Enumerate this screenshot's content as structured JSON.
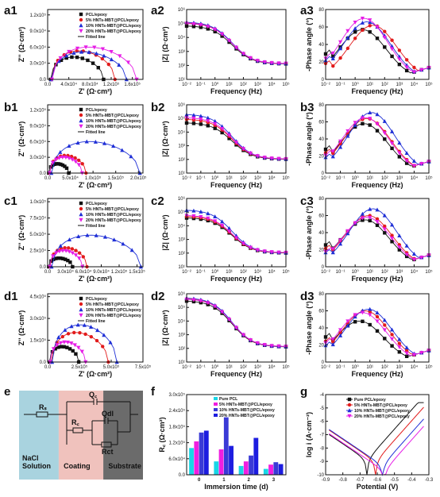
{
  "panels": {
    "a1": "a1",
    "a2": "a2",
    "a3": "a3",
    "b1": "b1",
    "b2": "b2",
    "b3": "b3",
    "c1": "c1",
    "c2": "c2",
    "c3": "c3",
    "d1": "d1",
    "d2": "d2",
    "d3": "d3",
    "e": "e",
    "f": "f",
    "g": "g"
  },
  "colors": {
    "s0": "#111111",
    "s1": "#e21b1b",
    "s2": "#1f2fd6",
    "s3": "#e61ce6",
    "fit": "#111111",
    "f0": "#18d6e6",
    "f1": "#f01ee0",
    "f2": "#3a3ad6",
    "f3": "#1d1de0"
  },
  "legend_nyquist": [
    "PCL/epoxy",
    "5% HNTs-MBT@PCL/epoxy",
    "10% HNTs-MBT@PCL/epoxy",
    "20% HNTs-MBT@PCL/epoxy",
    "Fitted line"
  ],
  "legend_short": [
    "PCL/epoxy",
    "5% HNTs-MBT@PCL/epoxy",
    "10% HNTs-MBT@PCL/epoxy",
    "20% HNTs-MBT@PCL/epoxy"
  ],
  "chart_data": [
    {
      "id": "a1",
      "type": "scatter",
      "xlabel": "Z' (Ω·cm²)",
      "ylabel": "Z'' (Ω·cm²)",
      "xlim": [
        0,
        180000.0
      ],
      "ylim": [
        0,
        130000.0
      ],
      "xticks": [
        "0.0",
        "4.0x10⁴",
        "8.0x10⁴",
        "1.2x10⁵",
        "1.6x10⁵"
      ],
      "xtick_values": [
        0,
        40000,
        80000,
        120000,
        160000
      ],
      "yticks": [
        "0.0",
        "3.0x10⁴",
        "6.0x10⁴",
        "9.0x10⁴",
        "1.2x10⁵"
      ],
      "ytick_values": [
        0,
        30000,
        60000,
        90000,
        120000
      ],
      "series": [
        {
          "name": "PCL/epoxy",
          "r": 47000,
          "end": 100000
        },
        {
          "name": "5% HNTs-MBT@PCL/epoxy",
          "r": 60000,
          "end": 120000
        },
        {
          "name": "10% HNTs-MBT@PCL/epoxy",
          "r": 58000,
          "end": 142000
        },
        {
          "name": "20% HNTs-MBT@PCL/epoxy",
          "r": 68000,
          "end": 160000
        }
      ]
    },
    {
      "id": "b1",
      "type": "scatter",
      "xlabel": "Z' (Ω·cm²)",
      "ylabel": "Z'' (Ω·cm²)",
      "xlim": [
        0,
        210000.0
      ],
      "ylim": [
        0,
        130000.0
      ],
      "xticks": [
        "0.0",
        "5.0x10⁴",
        "1.0x10⁵",
        "1.5x10⁵",
        "2.0x10⁵"
      ],
      "xtick_values": [
        0,
        50000,
        100000,
        150000,
        200000
      ],
      "yticks": [
        "0.0",
        "3.0x10⁴",
        "6.0x10⁴",
        "9.0x10⁴",
        "1.2x10⁵"
      ],
      "ytick_values": [
        0,
        30000,
        60000,
        90000,
        120000
      ],
      "series": [
        {
          "name": "PCL/epoxy",
          "r": 20000,
          "end": 44000
        },
        {
          "name": "5% HNTs-MBT@PCL/epoxy",
          "r": 38000,
          "end": 80000
        },
        {
          "name": "10% HNTs-MBT@PCL/epoxy",
          "r": 68000,
          "end": 195000
        },
        {
          "name": "20% HNTs-MBT@PCL/epoxy",
          "r": 34000,
          "end": 72000
        }
      ]
    },
    {
      "id": "c1",
      "type": "scatter",
      "xlabel": "Z' (Ω·cm²)",
      "ylabel": "Z'' (Ω·cm²)",
      "xlim": [
        0,
        160000.0
      ],
      "ylim": [
        0,
        105000.0
      ],
      "xticks": [
        "0.0",
        "3.0x10⁴",
        "6.0x10⁴",
        "9.0x10⁴",
        "1.2x10⁵",
        "1.5x10⁵"
      ],
      "xtick_values": [
        0,
        30000,
        60000,
        90000,
        120000,
        150000
      ],
      "yticks": [
        "0.0",
        "2.5x10⁴",
        "5.0x10⁴",
        "7.5x10⁴",
        "1.0x10⁵"
      ],
      "ytick_values": [
        0,
        25000,
        50000,
        75000,
        100000
      ],
      "series": [
        {
          "name": "PCL/epoxy",
          "r": 15000,
          "end": 40000
        },
        {
          "name": "5% HNTs-MBT@PCL/epoxy",
          "r": 33000,
          "end": 62000
        },
        {
          "name": "10% HNTs-MBT@PCL/epoxy",
          "r": 55000,
          "end": 150000
        },
        {
          "name": "20% HNTs-MBT@PCL/epoxy",
          "r": 28000,
          "end": 55000
        }
      ]
    },
    {
      "id": "d1",
      "type": "scatter",
      "xlabel": "Z' (Ω·cm²)",
      "ylabel": "Z'' (Ω·cm²)",
      "xlim": [
        0,
        750000.0
      ],
      "ylim": [
        0,
        470000.0
      ],
      "xticks": [
        "0.0",
        "2.5x10⁵",
        "5.0x10⁵",
        "7.5x10⁵"
      ],
      "xtick_values": [
        0,
        250000,
        500000,
        750000
      ],
      "yticks": [
        "0.0",
        "1.5x10⁵",
        "3.0x10⁵",
        "4.5x10⁵"
      ],
      "ytick_values": [
        0,
        150000,
        300000,
        450000
      ],
      "series": [
        {
          "name": "PCL/epoxy",
          "r": 120000,
          "end": 230000
        },
        {
          "name": "5% HNTs-MBT@PCL/epoxy",
          "r": 230000,
          "end": 450000
        },
        {
          "name": "10% HNTs-MBT@PCL/epoxy",
          "r": 290000,
          "end": 510000
        },
        {
          "name": "20% HNTs-MBT@PCL/epoxy",
          "r": 155000,
          "end": 280000
        }
      ]
    },
    {
      "id": "a2",
      "type": "line",
      "xlabel": "Frequency (Hz)",
      "ylabel": "|Z| (Ω·cm²)",
      "log_x": true,
      "log_y": true,
      "xlim_exp": [
        -2,
        5
      ],
      "ylim_exp": [
        1,
        6
      ],
      "lowf_exp": [
        4.85,
        5.05,
        5.1,
        5.0
      ],
      "highf_exp": 2.1
    },
    {
      "id": "b2",
      "type": "line",
      "xlabel": "Frequency (Hz)",
      "ylabel": "|Z| (Ω·cm²)",
      "log_x": true,
      "log_y": true,
      "xlim_exp": [
        -2,
        5
      ],
      "ylim_exp": [
        1,
        6
      ],
      "lowf_exp": [
        4.7,
        4.95,
        5.3,
        5.05
      ],
      "highf_exp": 2.0
    },
    {
      "id": "c2",
      "type": "line",
      "xlabel": "Frequency (Hz)",
      "ylabel": "|Z| (Ω·cm²)",
      "log_x": true,
      "log_y": true,
      "xlim_exp": [
        -2,
        5
      ],
      "ylim_exp": [
        1,
        6
      ],
      "lowf_exp": [
        4.6,
        4.7,
        5.15,
        4.75
      ],
      "highf_exp": 2.0
    },
    {
      "id": "d2",
      "type": "line",
      "xlabel": "Frequency (Hz)",
      "ylabel": "|Z| (Ω·cm²)",
      "log_x": true,
      "log_y": true,
      "xlim_exp": [
        -2,
        5
      ],
      "ylim_exp": [
        1,
        6
      ],
      "lowf_exp": [
        5.5,
        5.65,
        5.7,
        5.6
      ],
      "highf_exp": 2.1
    },
    {
      "id": "a3",
      "type": "line",
      "xlabel": "Frequency (Hz)",
      "ylabel": "-Phase angle (°)",
      "log_x": true,
      "xlim_exp": [
        -2,
        5
      ],
      "ylim": [
        0,
        80
      ],
      "yticks": [
        0,
        20,
        40,
        60,
        80
      ],
      "series_peak": [
        {
          "deg": 57,
          "at": 0.5
        },
        {
          "deg": 62,
          "at": 1.2
        },
        {
          "deg": 66,
          "at": 0.8
        },
        {
          "deg": 70,
          "at": 0.6
        }
      ]
    },
    {
      "id": "b3",
      "type": "line",
      "xlabel": "Frequency (Hz)",
      "ylabel": "-Phase angle (°)",
      "log_x": true,
      "xlim_exp": [
        -2,
        5
      ],
      "ylim": [
        0,
        80
      ],
      "yticks": [
        0,
        20,
        40,
        60,
        80
      ],
      "series_peak": [
        {
          "deg": 58,
          "at": 0.6
        },
        {
          "deg": 64,
          "at": 0.8
        },
        {
          "deg": 71,
          "at": 1.1
        },
        {
          "deg": 65,
          "at": 0.7
        }
      ]
    },
    {
      "id": "c3",
      "type": "line",
      "xlabel": "Frequency (Hz)",
      "ylabel": "-Phase angle (°)",
      "log_x": true,
      "xlim_exp": [
        -2,
        5
      ],
      "ylim": [
        0,
        80
      ],
      "yticks": [
        0,
        20,
        40,
        60,
        80
      ],
      "series_peak": [
        {
          "deg": 55,
          "at": 0.7
        },
        {
          "deg": 60,
          "at": 0.9
        },
        {
          "deg": 68,
          "at": 1.2
        },
        {
          "deg": 58,
          "at": 0.8
        }
      ]
    },
    {
      "id": "d3",
      "type": "line",
      "xlabel": "Frequency (Hz)",
      "ylabel": "-Phase angle (°)",
      "log_x": true,
      "xlim_exp": [
        -2,
        5
      ],
      "ylim": [
        0,
        80
      ],
      "yticks": [
        0,
        20,
        40,
        60,
        80
      ],
      "series_peak": [
        {
          "deg": 48,
          "at": 0.3
        },
        {
          "deg": 60,
          "at": 0.7
        },
        {
          "deg": 62,
          "at": 0.9
        },
        {
          "deg": 58,
          "at": 0.5
        }
      ]
    },
    {
      "id": "f",
      "type": "bar",
      "xlabel": "Immersion time (d)",
      "ylabel": "R꜀ (Ω·cm²)",
      "categories": [
        "0",
        "1",
        "2",
        "3"
      ],
      "ylim": [
        0,
        300000.0
      ],
      "yticks": [
        "0.0",
        "6.0x10⁴",
        "1.2x10⁵",
        "1.8x10⁵",
        "2.4x10⁵",
        "3.0x10⁵"
      ],
      "ytick_values": [
        0,
        60000,
        120000,
        180000,
        240000,
        300000
      ],
      "series": [
        {
          "name": "Pure PCL",
          "values": [
            100000,
            50000,
            33000,
            22000
          ]
        },
        {
          "name": "5% HNTs-MBT@PCL/epoxy",
          "values": [
            125000,
            95000,
            50000,
            38000
          ]
        },
        {
          "name": "10% HNTs-MBT@PCL/epoxy",
          "values": [
            158000,
            215000,
            72000,
            47000
          ]
        },
        {
          "name": "20% HNTs-MBT@PCL/epoxy",
          "values": [
            165000,
            108000,
            138000,
            40000
          ]
        }
      ]
    },
    {
      "id": "g",
      "type": "line",
      "xlabel": "Potential (V)",
      "ylabel": "log i (A·cm⁻²)",
      "xlim": [
        -0.9,
        -0.3
      ],
      "ylim": [
        -10,
        -4
      ],
      "xticks": [
        "-0.9",
        "-0.8",
        "-0.7",
        "-0.6",
        "-0.5",
        "-0.4",
        "-0.3"
      ],
      "xtick_values": [
        -0.9,
        -0.8,
        -0.7,
        -0.6,
        -0.5,
        -0.4,
        -0.3
      ],
      "yticks": [
        "-10",
        "-9",
        "-8",
        "-7",
        "-6",
        "-5",
        "-4"
      ],
      "ytick_values": [
        -10,
        -9,
        -8,
        -7,
        -6,
        -5,
        -4
      ],
      "series": [
        {
          "name": "Pure PCL/epoxy",
          "ecorr": -0.66,
          "icorr": -8.9
        },
        {
          "name": "5% HNTs-MBT@PCL/epoxy",
          "ecorr": -0.61,
          "icorr": -9.0
        },
        {
          "name": "10% HNTs-MBT@PCL/epoxy",
          "ecorr": -0.57,
          "icorr": -9.3
        },
        {
          "name": "20% HNTs-MBT@PCL/epoxy",
          "ecorr": -0.56,
          "icorr": -9.7
        }
      ]
    }
  ],
  "circuit": {
    "regions": [
      "NaCl\nSolution",
      "Coating",
      "Substrate"
    ],
    "labels": [
      "Rₛ",
      "Q꜀",
      "R꜀",
      "Qdl",
      "Rct"
    ]
  },
  "f_legend": [
    "Pure PCL",
    "5% HNTs-MBT@PCL/epoxy",
    "10% HNTs-MBT@PCL/epoxy",
    "20% HNTs-MBT@PCL/epoxy"
  ],
  "g_legend": [
    "Pure PCL/epoxy",
    "5% HNTs-MBT@PCL/epoxy",
    "10% HNTs-MBT@PCL/epoxy",
    "20% HNTs-MBT@PCL/epoxy"
  ]
}
